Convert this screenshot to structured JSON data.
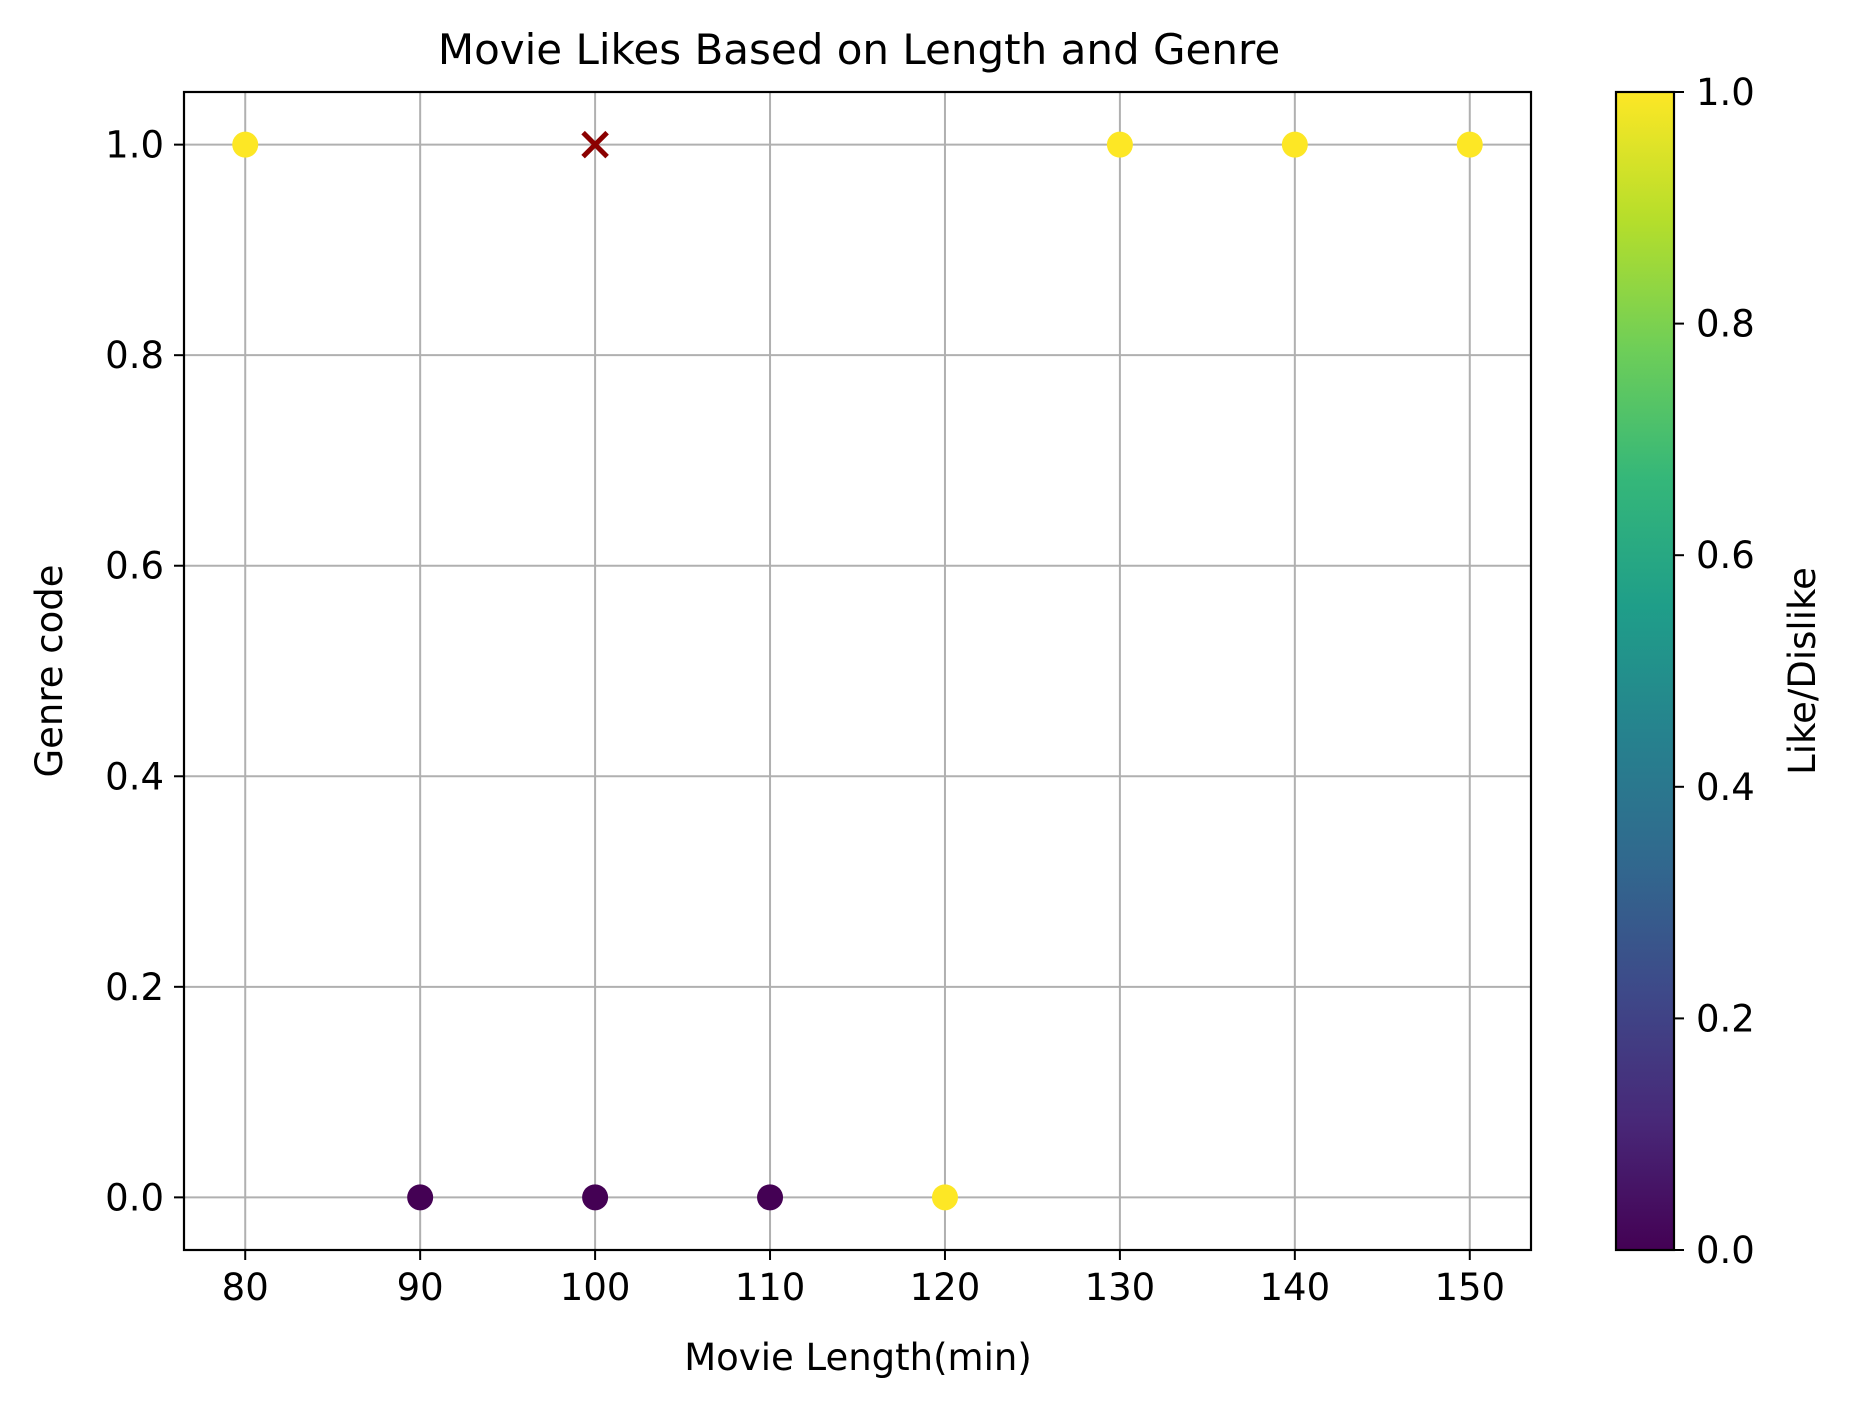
{
  "chart_data": {
    "type": "scatter",
    "title": "Movie Likes Based on Length and Genre",
    "xlabel": "Movie Length(min)",
    "ylabel": "Genre code",
    "xlim": [
      76.5,
      153.5
    ],
    "ylim": [
      -0.05,
      1.05
    ],
    "x_ticks": [
      80,
      90,
      100,
      110,
      120,
      130,
      140,
      150
    ],
    "y_ticks": [
      0.0,
      0.2,
      0.4,
      0.6,
      0.8,
      1.0
    ],
    "grid": true,
    "points": [
      {
        "x": 80,
        "y": 1,
        "like": 1
      },
      {
        "x": 90,
        "y": 0,
        "like": 0
      },
      {
        "x": 100,
        "y": 0,
        "like": 0
      },
      {
        "x": 110,
        "y": 0,
        "like": 0
      },
      {
        "x": 120,
        "y": 0,
        "like": 1
      },
      {
        "x": 130,
        "y": 1,
        "like": 1
      },
      {
        "x": 140,
        "y": 1,
        "like": 1
      },
      {
        "x": 150,
        "y": 1,
        "like": 1
      }
    ],
    "highlight_point": {
      "x": 100,
      "y": 1,
      "marker": "x",
      "color": "#8b0000"
    },
    "colorbar": {
      "label": "Like/Dislike",
      "range": [
        0.0,
        1.0
      ],
      "ticks": [
        0.0,
        0.2,
        0.4,
        0.6,
        0.8,
        1.0
      ],
      "colormap": "viridis",
      "colors": [
        "#440154",
        "#482878",
        "#3e4989",
        "#31688e",
        "#26828e",
        "#1f9e89",
        "#35b779",
        "#6ece58",
        "#b5de2b",
        "#fde725"
      ]
    }
  }
}
